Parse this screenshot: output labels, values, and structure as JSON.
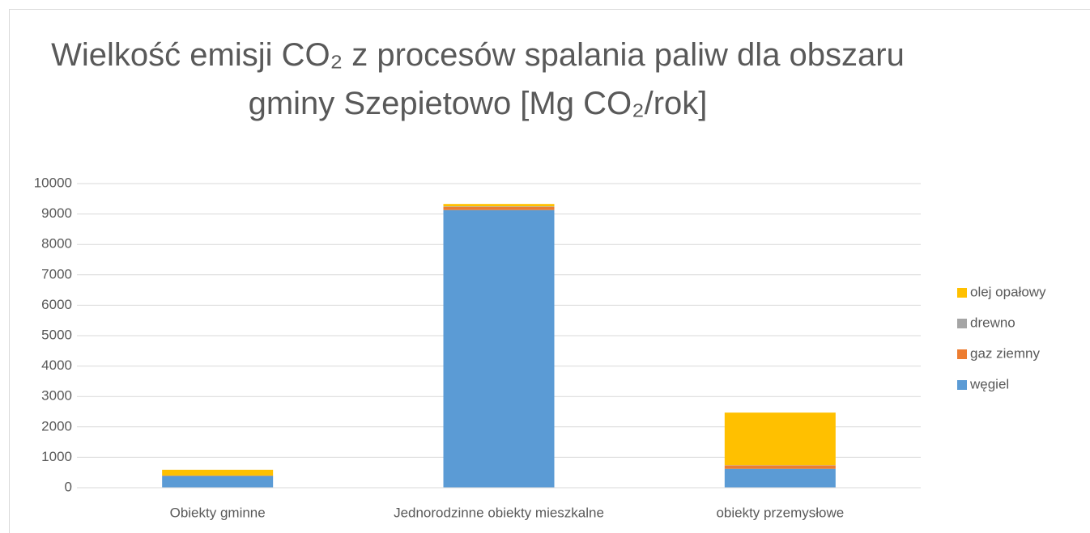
{
  "chart_data": {
    "type": "stacked_bar",
    "title": "Wielkość emisji CO₂ z procesów spalania paliw dla obszaru gminy Szepietowo [Mg CO₂/rok]",
    "categories": [
      "Obiekty gminne",
      "Jednorodzinne obiekty mieszkalne",
      "obiekty przemysłowe"
    ],
    "series": [
      {
        "name": "węgiel",
        "color": "#5b9bd5",
        "values": [
          390,
          9130,
          620
        ]
      },
      {
        "name": "gaz ziemny",
        "color": "#ed7d31",
        "values": [
          10,
          100,
          110
        ]
      },
      {
        "name": "drewno",
        "color": "#a5a5a5",
        "values": [
          0,
          20,
          10
        ]
      },
      {
        "name": "olej opałowy",
        "color": "#ffc000",
        "values": [
          190,
          80,
          1730
        ]
      }
    ],
    "ylim": [
      0,
      10000
    ],
    "yticks": [
      0,
      1000,
      2000,
      3000,
      4000,
      5000,
      6000,
      7000,
      8000,
      9000,
      10000
    ],
    "grid": true,
    "legend": "right"
  }
}
